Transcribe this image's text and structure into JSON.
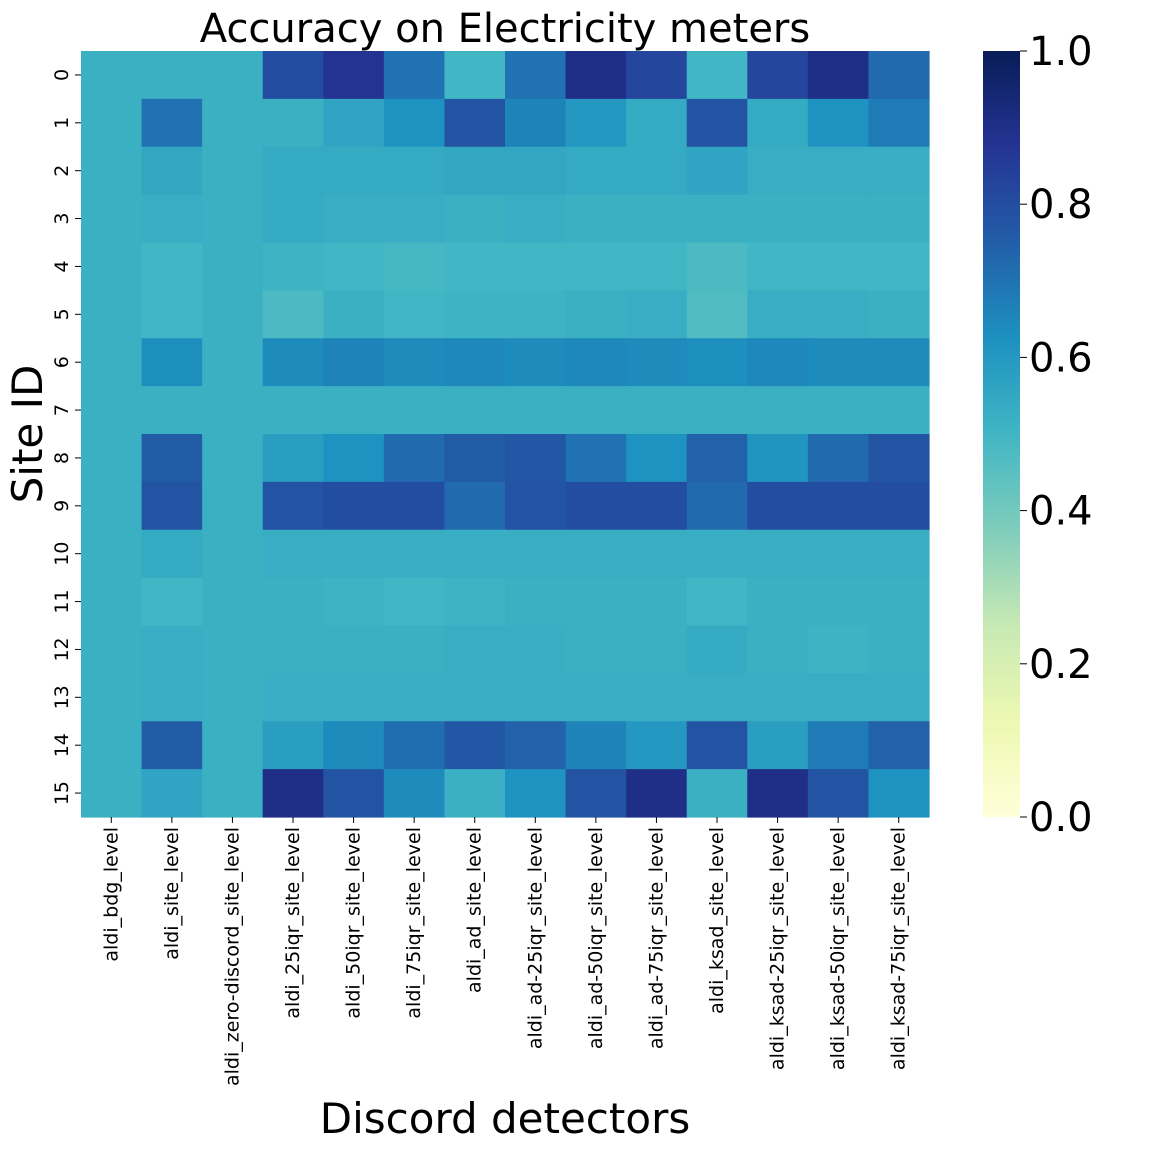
{
  "chart_data": {
    "type": "heatmap",
    "title": "Accuracy on Electricity meters",
    "xlabel": "Discord detectors",
    "ylabel": "Site ID",
    "x_categories": [
      "aldi_bdg_level",
      "aldi_site_level",
      "aldi_zero-discord_site_level",
      "aldi_25iqr_site_level",
      "aldi_50iqr_site_level",
      "aldi_75iqr_site_level",
      "aldi_ad_site_level",
      "aldi_ad-25iqr_site_level",
      "aldi_ad-50iqr_site_level",
      "aldi_ad-75iqr_site_level",
      "aldi_ksad_site_level",
      "aldi_ksad-25iqr_site_level",
      "aldi_ksad-50iqr_site_level",
      "aldi_ksad-75iqr_site_level"
    ],
    "y_categories": [
      "0",
      "1",
      "2",
      "3",
      "4",
      "5",
      "6",
      "7",
      "8",
      "9",
      "10",
      "11",
      "12",
      "13",
      "14",
      "15"
    ],
    "values": [
      [
        0.52,
        0.52,
        0.52,
        0.8,
        0.88,
        0.7,
        0.5,
        0.7,
        0.9,
        0.82,
        0.5,
        0.82,
        0.9,
        0.72
      ],
      [
        0.52,
        0.7,
        0.52,
        0.52,
        0.56,
        0.62,
        0.78,
        0.66,
        0.6,
        0.54,
        0.78,
        0.54,
        0.62,
        0.68
      ],
      [
        0.52,
        0.55,
        0.52,
        0.54,
        0.54,
        0.54,
        0.55,
        0.55,
        0.54,
        0.54,
        0.56,
        0.53,
        0.53,
        0.53
      ],
      [
        0.52,
        0.53,
        0.52,
        0.54,
        0.53,
        0.53,
        0.52,
        0.53,
        0.52,
        0.52,
        0.52,
        0.52,
        0.52,
        0.52
      ],
      [
        0.52,
        0.5,
        0.52,
        0.51,
        0.5,
        0.49,
        0.5,
        0.5,
        0.5,
        0.5,
        0.48,
        0.5,
        0.5,
        0.5
      ],
      [
        0.52,
        0.5,
        0.52,
        0.48,
        0.52,
        0.5,
        0.51,
        0.51,
        0.52,
        0.53,
        0.47,
        0.53,
        0.53,
        0.52
      ],
      [
        0.52,
        0.63,
        0.52,
        0.64,
        0.66,
        0.64,
        0.65,
        0.64,
        0.65,
        0.64,
        0.63,
        0.65,
        0.64,
        0.64
      ],
      [
        0.52,
        0.52,
        0.52,
        0.52,
        0.52,
        0.52,
        0.52,
        0.52,
        0.52,
        0.52,
        0.52,
        0.52,
        0.52,
        0.52
      ],
      [
        0.52,
        0.76,
        0.52,
        0.58,
        0.62,
        0.72,
        0.76,
        0.77,
        0.7,
        0.62,
        0.74,
        0.61,
        0.72,
        0.78
      ],
      [
        0.52,
        0.78,
        0.52,
        0.78,
        0.8,
        0.8,
        0.72,
        0.78,
        0.8,
        0.8,
        0.72,
        0.8,
        0.8,
        0.8
      ],
      [
        0.52,
        0.54,
        0.52,
        0.53,
        0.53,
        0.53,
        0.53,
        0.53,
        0.53,
        0.53,
        0.53,
        0.53,
        0.53,
        0.53
      ],
      [
        0.52,
        0.5,
        0.52,
        0.52,
        0.51,
        0.5,
        0.51,
        0.52,
        0.52,
        0.52,
        0.5,
        0.52,
        0.52,
        0.52
      ],
      [
        0.52,
        0.53,
        0.52,
        0.52,
        0.52,
        0.52,
        0.53,
        0.53,
        0.52,
        0.52,
        0.54,
        0.52,
        0.51,
        0.52
      ],
      [
        0.52,
        0.53,
        0.52,
        0.53,
        0.53,
        0.53,
        0.53,
        0.53,
        0.53,
        0.53,
        0.53,
        0.53,
        0.53,
        0.53
      ],
      [
        0.52,
        0.76,
        0.52,
        0.58,
        0.64,
        0.71,
        0.77,
        0.74,
        0.66,
        0.6,
        0.78,
        0.58,
        0.68,
        0.74
      ],
      [
        0.52,
        0.56,
        0.52,
        0.9,
        0.78,
        0.64,
        0.52,
        0.62,
        0.78,
        0.9,
        0.52,
        0.9,
        0.78,
        0.62
      ]
    ],
    "vmin": 0.0,
    "vmax": 1.0,
    "colormap": "YlGnBu",
    "colorbar_ticks": [
      "0.0",
      "0.2",
      "0.4",
      "0.6",
      "0.8",
      "1.0"
    ]
  }
}
